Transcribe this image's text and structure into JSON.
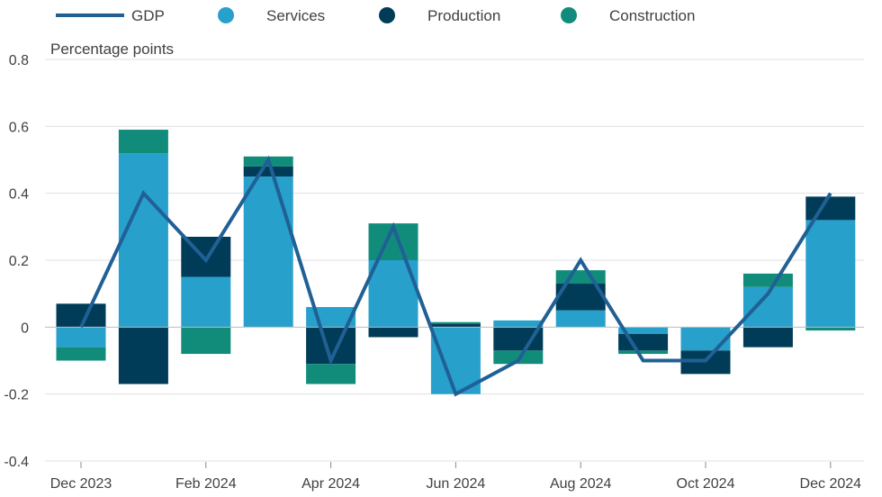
{
  "chart_data": {
    "type": "bar",
    "stacked": true,
    "title": "",
    "ylabel": "Percentage points",
    "xlabel": "",
    "ylim": [
      -0.4,
      0.8
    ],
    "yticks": [
      -0.4,
      -0.2,
      0,
      0.2,
      0.4,
      0.6,
      0.8
    ],
    "ytick_labels": [
      "-0.4",
      "-0.2",
      "0",
      "0.2",
      "0.4",
      "0.6",
      "0.8"
    ],
    "grid": true,
    "legend_position": "top",
    "categories": [
      "Dec 2023",
      "Jan 2024",
      "Feb 2024",
      "Mar 2024",
      "Apr 2024",
      "May 2024",
      "Jun 2024",
      "Jul 2024",
      "Aug 2024",
      "Sep 2024",
      "Oct 2024",
      "Nov 2024",
      "Dec 2024"
    ],
    "xtick_labels": [
      {
        "index": 0,
        "label": "Dec 2023"
      },
      {
        "index": 2,
        "label": "Feb 2024"
      },
      {
        "index": 4,
        "label": "Apr 2024"
      },
      {
        "index": 6,
        "label": "Jun 2024"
      },
      {
        "index": 8,
        "label": "Aug 2024"
      },
      {
        "index": 10,
        "label": "Oct 2024"
      },
      {
        "index": 12,
        "label": "Dec 2024"
      }
    ],
    "series": [
      {
        "name": "Services",
        "kind": "bar",
        "color": "#27a0cc",
        "values": [
          -0.06,
          0.52,
          0.15,
          0.45,
          0.06,
          0.2,
          -0.2,
          0.02,
          0.05,
          -0.02,
          -0.07,
          0.12,
          0.32
        ]
      },
      {
        "name": "Production",
        "kind": "bar",
        "color": "#003c57",
        "values": [
          0.07,
          -0.17,
          0.12,
          0.03,
          -0.11,
          -0.03,
          0.01,
          -0.07,
          0.08,
          -0.05,
          -0.07,
          -0.06,
          0.07
        ]
      },
      {
        "name": "Construction",
        "kind": "bar",
        "color": "#118c7b",
        "values": [
          -0.04,
          0.07,
          -0.08,
          0.03,
          -0.06,
          0.11,
          0.005,
          -0.04,
          0.04,
          -0.01,
          0.0,
          0.04,
          -0.01
        ]
      },
      {
        "name": "GDP",
        "kind": "line",
        "color": "#206095",
        "values": [
          0.0,
          0.4,
          0.2,
          0.5,
          -0.1,
          0.3,
          -0.2,
          -0.1,
          0.2,
          -0.1,
          -0.1,
          0.1,
          0.4
        ]
      }
    ]
  }
}
